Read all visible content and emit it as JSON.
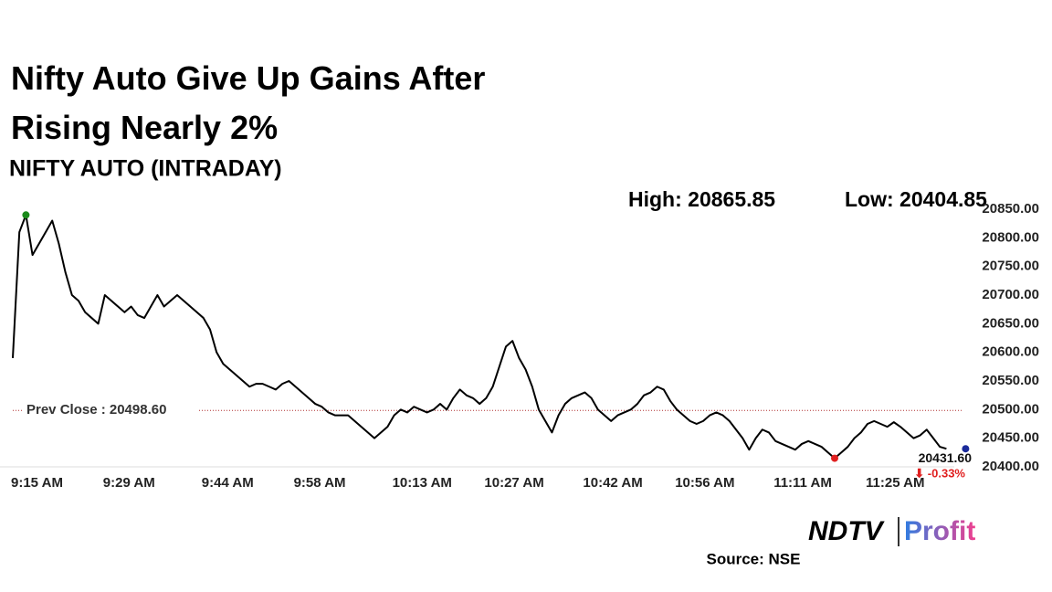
{
  "chart_data": {
    "type": "line",
    "title": "Nifty Auto Give Up Gains After Rising Nearly 2%",
    "subtitle": "NIFTY AUTO (INTRADAY)",
    "high_label": "High: 20865.85",
    "low_label": "Low: 20404.85",
    "prev_close": {
      "value": 20498.6,
      "label": "Prev Close : 20498.60"
    },
    "last": {
      "value": 20431.6,
      "label": "20431.60"
    },
    "change_label": "⬇ -0.33%",
    "brand": {
      "left": "NDTV",
      "right": "Profit"
    },
    "source": "Source: NSE",
    "categories": [
      "9:15 AM",
      null,
      null,
      null,
      null,
      null,
      null,
      null,
      null,
      null,
      null,
      null,
      null,
      null,
      "9:29 AM",
      null,
      null,
      null,
      null,
      null,
      null,
      null,
      null,
      null,
      null,
      null,
      null,
      null,
      null,
      "9:44 AM",
      null,
      null,
      null,
      null,
      null,
      null,
      null,
      null,
      null,
      null,
      null,
      null,
      null,
      "9:58 AM",
      null,
      null,
      null,
      null,
      null,
      null,
      null,
      null,
      null,
      null,
      null,
      null,
      null,
      null,
      "10:13 AM",
      null,
      null,
      null,
      null,
      null,
      null,
      null,
      null,
      null,
      null,
      null,
      null,
      null,
      "10:27 AM",
      null,
      null,
      null,
      null,
      null,
      null,
      null,
      null,
      null,
      null,
      null,
      null,
      null,
      null,
      "10:42 AM",
      null,
      null,
      null,
      null,
      null,
      null,
      null,
      null,
      null,
      null,
      null,
      null,
      null,
      "10:56 AM",
      null,
      null,
      null,
      null,
      null,
      null,
      null,
      null,
      null,
      null,
      null,
      null,
      null,
      null,
      "11:11 AM",
      null,
      null,
      null,
      null,
      null,
      null,
      null,
      null,
      null,
      null,
      null,
      null,
      null,
      "11:25 AM",
      null,
      null,
      null,
      null,
      null,
      null,
      null,
      null,
      null,
      null,
      null,
      null
    ],
    "series": [
      {
        "name": "NIFTY AUTO",
        "color": "#000000",
        "values": [
          20590,
          20810,
          20840,
          20770,
          20790,
          20810,
          20830,
          20790,
          20740,
          20700,
          20690,
          20670,
          20660,
          20650,
          20700,
          20690,
          20680,
          20670,
          20680,
          20665,
          20660,
          20680,
          20700,
          20680,
          20690,
          20700,
          20690,
          20680,
          20670,
          20660,
          20640,
          20600,
          20580,
          20570,
          20560,
          20550,
          20540,
          20545,
          20545,
          20540,
          20535,
          20545,
          20550,
          20540,
          20530,
          20520,
          20510,
          20505,
          20495,
          20490,
          20490,
          20490,
          20480,
          20470,
          20460,
          20450,
          20460,
          20470,
          20490,
          20500,
          20495,
          20505,
          20500,
          20495,
          20500,
          20510,
          20500,
          20520,
          20535,
          20525,
          20520,
          20510,
          20520,
          20540,
          20575,
          20610,
          20620,
          20590,
          20570,
          20540,
          20500,
          20480,
          20460,
          20490,
          20510,
          20520,
          20525,
          20530,
          20520,
          20500,
          20490,
          20480,
          20490,
          20495,
          20500,
          20510,
          20525,
          20530,
          20540,
          20535,
          20515,
          20500,
          20490,
          20480,
          20475,
          20480,
          20490,
          20495,
          20490,
          20480,
          20465,
          20450,
          20430,
          20450,
          20465,
          20460,
          20445,
          20440,
          20435,
          20430,
          20440,
          20445,
          20440,
          20435,
          20425,
          20415,
          20425,
          20435,
          20450,
          20460,
          20475,
          20480,
          20475,
          20470,
          20478,
          20470,
          20460,
          20450,
          20455,
          20465,
          20450,
          20435,
          20431.6
        ]
      }
    ],
    "markers": [
      {
        "index": 2,
        "color": "#1a8a1a"
      },
      {
        "index": 125,
        "color": "#e02020"
      },
      {
        "index": 142,
        "color": "#1a2a9a"
      }
    ],
    "ylim": [
      20400,
      20850
    ],
    "yticks": [
      {
        "value": 20400,
        "label": "20400.00"
      },
      {
        "value": 20450,
        "label": "20450.00"
      },
      {
        "value": 20500,
        "label": "20500.00"
      },
      {
        "value": 20550,
        "label": "20550.00"
      },
      {
        "value": 20600,
        "label": "20600.00"
      },
      {
        "value": 20650,
        "label": "20650.00"
      },
      {
        "value": 20700,
        "label": "20700.00"
      },
      {
        "value": 20750,
        "label": "20750.00"
      },
      {
        "value": 20800,
        "label": "20800.00"
      },
      {
        "value": 20850,
        "label": "20850.00"
      }
    ]
  }
}
